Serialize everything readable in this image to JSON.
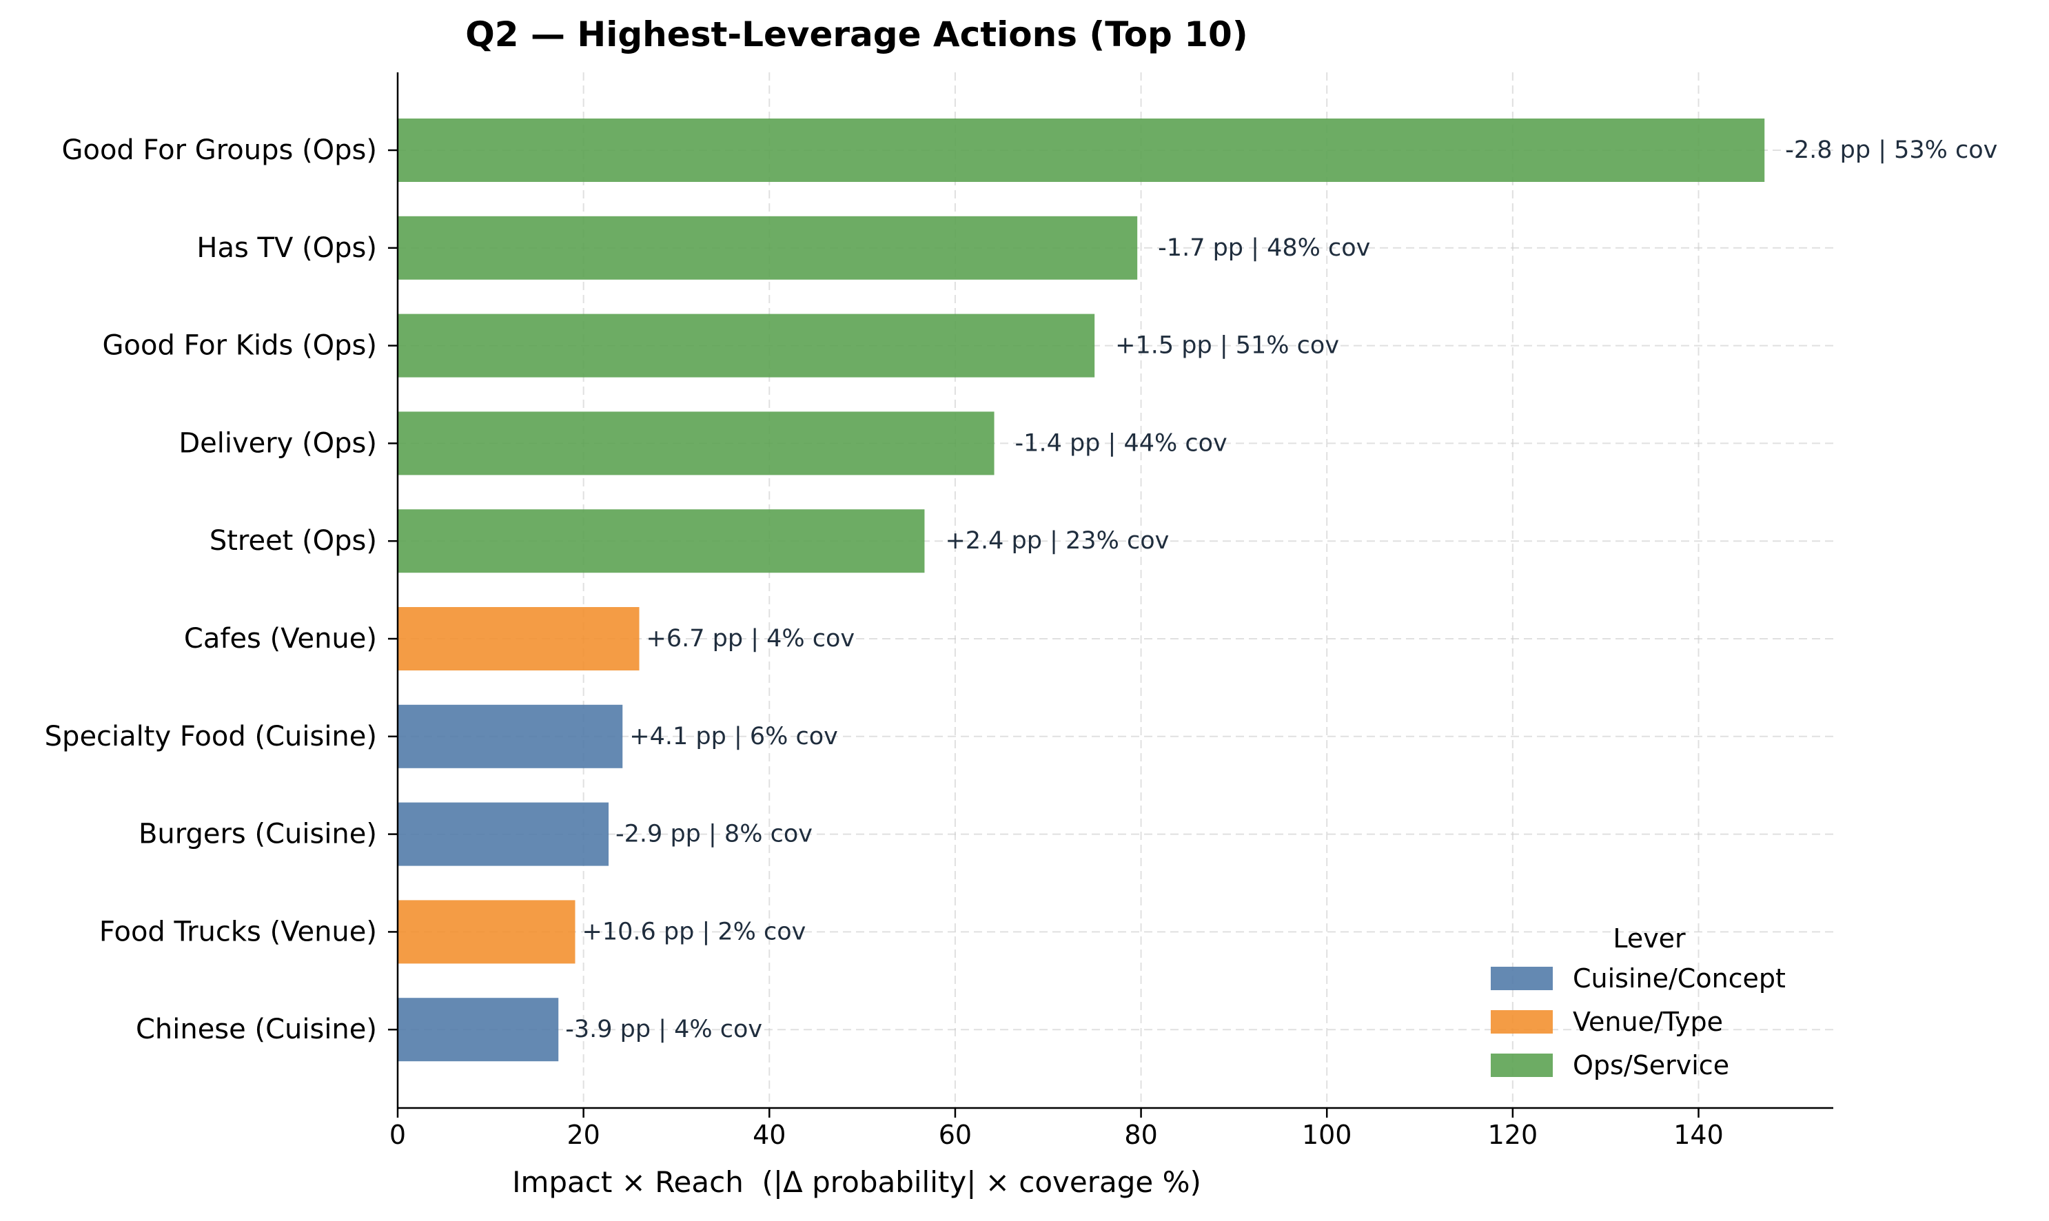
{
  "chart_data": {
    "type": "bar",
    "orientation": "horizontal",
    "title": "Q2 — Highest-Leverage Actions (Top 10)",
    "xlabel": "Impact × Reach  (|Δ probability| × coverage %)",
    "ylabel": "",
    "xlim": [
      0,
      154.5
    ],
    "xticks": [
      0,
      20,
      40,
      60,
      80,
      100,
      120,
      140
    ],
    "grid": true,
    "legend": {
      "title": "Lever",
      "placement": "lower-right",
      "entries": [
        {
          "label": "Cuisine/Concept",
          "color": "#4e79a7"
        },
        {
          "label": "Venue/Type",
          "color": "#f28e2b"
        },
        {
          "label": "Ops/Service",
          "color": "#59a14f"
        }
      ]
    },
    "bars": [
      {
        "category": "Good For Groups  (Ops)",
        "value": 147.1,
        "group": "Ops/Service",
        "annotation": "-2.8 pp | 53% cov"
      },
      {
        "category": "Has TV  (Ops)",
        "value": 79.6,
        "group": "Ops/Service",
        "annotation": "-1.7 pp | 48% cov"
      },
      {
        "category": "Good For Kids  (Ops)",
        "value": 75.0,
        "group": "Ops/Service",
        "annotation": "+1.5 pp | 51% cov"
      },
      {
        "category": "Delivery  (Ops)",
        "value": 64.2,
        "group": "Ops/Service",
        "annotation": "-1.4 pp | 44% cov"
      },
      {
        "category": "Street  (Ops)",
        "value": 56.7,
        "group": "Ops/Service",
        "annotation": "+2.4 pp | 23% cov"
      },
      {
        "category": "Cafes  (Venue)",
        "value": 26.0,
        "group": "Venue/Type",
        "annotation": "+6.7 pp | 4% cov"
      },
      {
        "category": "Specialty Food  (Cuisine)",
        "value": 24.2,
        "group": "Cuisine/Concept",
        "annotation": "+4.1 pp | 6% cov"
      },
      {
        "category": "Burgers  (Cuisine)",
        "value": 22.7,
        "group": "Cuisine/Concept",
        "annotation": "-2.9 pp | 8% cov"
      },
      {
        "category": "Food Trucks  (Venue)",
        "value": 19.1,
        "group": "Venue/Type",
        "annotation": "+10.6 pp | 2% cov"
      },
      {
        "category": "Chinese  (Cuisine)",
        "value": 17.3,
        "group": "Cuisine/Concept",
        "annotation": "-3.9 pp | 4% cov"
      }
    ]
  }
}
